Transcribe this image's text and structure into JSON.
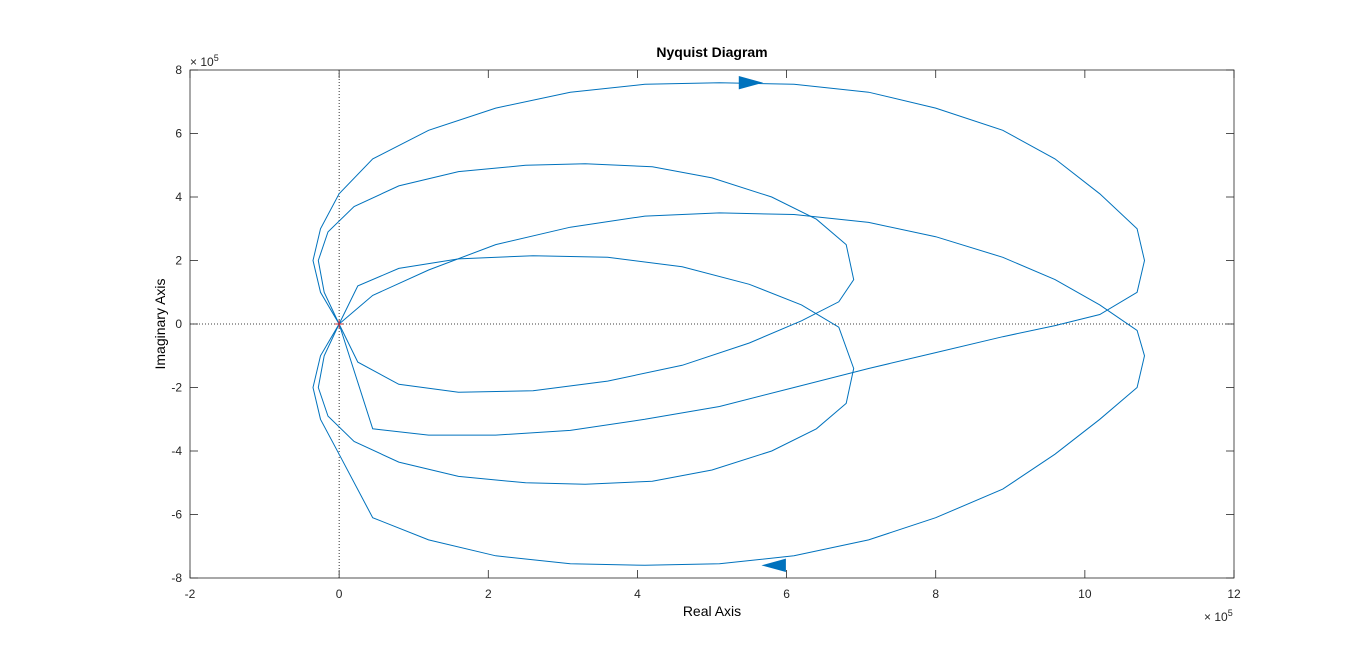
{
  "chart_data": {
    "type": "line",
    "title": "Nyquist Diagram",
    "xlabel": "Real Axis",
    "ylabel": "Imaginary Axis",
    "xlim": [
      -2,
      12
    ],
    "ylim": [
      -8,
      8
    ],
    "x_ticks": [
      -2,
      0,
      2,
      4,
      6,
      8,
      10,
      12
    ],
    "y_ticks": [
      -8,
      -6,
      -4,
      -2,
      0,
      2,
      4,
      6,
      8
    ],
    "x_exponent": {
      "base": "× 10",
      "power": "5"
    },
    "y_exponent": {
      "base": "× 10",
      "power": "5"
    },
    "grid": false,
    "zero_lines": true,
    "critical_point": {
      "x": 0,
      "y": 0,
      "marker": "+",
      "color": "#d62728"
    },
    "line_color": "#0072bd",
    "series": [
      {
        "x": [
          0,
          -0.25,
          -0.35,
          -0.25,
          0,
          0.45,
          1.2,
          2.1,
          3.1,
          4.1,
          5.1,
          6.1,
          7.1,
          8.0,
          8.9,
          9.6,
          10.2,
          10.7,
          10.8,
          10.7,
          10.2,
          9.6,
          8.9,
          8.0,
          7.1,
          6.1,
          5.1,
          4.1,
          3.1,
          2.1,
          1.2,
          0.45,
          0
        ],
        "y": [
          0,
          1.0,
          2.0,
          3.0,
          4.1,
          5.2,
          6.1,
          6.8,
          7.3,
          7.55,
          7.6,
          7.55,
          7.3,
          6.8,
          6.1,
          5.2,
          4.1,
          3.0,
          2.0,
          1.0,
          0.3,
          -0.05,
          -0.4,
          -0.9,
          -1.4,
          -2.0,
          -2.6,
          -3.0,
          -3.35,
          -3.5,
          -3.5,
          -3.3,
          0
        ]
      },
      {
        "x": [
          0,
          0.45,
          1.2,
          2.1,
          3.1,
          4.1,
          5.1,
          6.1,
          7.1,
          8.0,
          8.9,
          9.6,
          10.2,
          10.7,
          10.8,
          10.7,
          10.2,
          9.6,
          8.9,
          8.0,
          7.1,
          6.1,
          5.1,
          4.1,
          3.1,
          2.1,
          1.2,
          0.45,
          0,
          -0.25,
          -0.35,
          -0.25,
          0
        ],
        "y": [
          0,
          0.9,
          1.7,
          2.5,
          3.05,
          3.4,
          3.5,
          3.45,
          3.2,
          2.75,
          2.1,
          1.4,
          0.6,
          -0.2,
          -1.0,
          -2.0,
          -3.0,
          -4.1,
          -5.2,
          -6.1,
          -6.8,
          -7.3,
          -7.55,
          -7.6,
          -7.55,
          -7.3,
          -6.8,
          -6.1,
          -4.1,
          -3.0,
          -2.0,
          -1.0,
          0
        ]
      },
      {
        "x": [
          0,
          -0.2,
          -0.28,
          -0.15,
          0.2,
          0.8,
          1.6,
          2.5,
          3.3,
          4.2,
          5.0,
          5.8,
          6.4,
          6.8,
          6.9,
          6.7,
          6.2,
          5.5,
          4.6,
          3.6,
          2.6,
          1.6,
          0.8,
          0.25,
          0
        ],
        "y": [
          0,
          1.0,
          2.0,
          2.9,
          3.7,
          4.35,
          4.8,
          5.0,
          5.05,
          4.95,
          4.6,
          4.0,
          3.3,
          2.5,
          1.4,
          0.7,
          0.1,
          -0.6,
          -1.3,
          -1.8,
          -2.1,
          -2.15,
          -1.9,
          -1.2,
          0
        ]
      },
      {
        "x": [
          0,
          0.25,
          0.8,
          1.6,
          2.6,
          3.6,
          4.6,
          5.5,
          6.2,
          6.7,
          6.9,
          6.8,
          6.4,
          5.8,
          5.0,
          4.2,
          3.3,
          2.5,
          1.6,
          0.8,
          0.2,
          -0.15,
          -0.28,
          -0.2,
          0
        ],
        "y": [
          0,
          1.2,
          1.75,
          2.05,
          2.15,
          2.1,
          1.8,
          1.25,
          0.6,
          -0.1,
          -1.4,
          -2.5,
          -3.3,
          -4.0,
          -4.6,
          -4.95,
          -5.05,
          -5.0,
          -4.8,
          -4.35,
          -3.7,
          -2.9,
          -2.0,
          -1.0,
          0
        ]
      }
    ],
    "arrows": [
      {
        "x": 5.5,
        "y": 7.6,
        "direction": "right"
      },
      {
        "x": 5.85,
        "y": -7.6,
        "direction": "left"
      }
    ]
  }
}
